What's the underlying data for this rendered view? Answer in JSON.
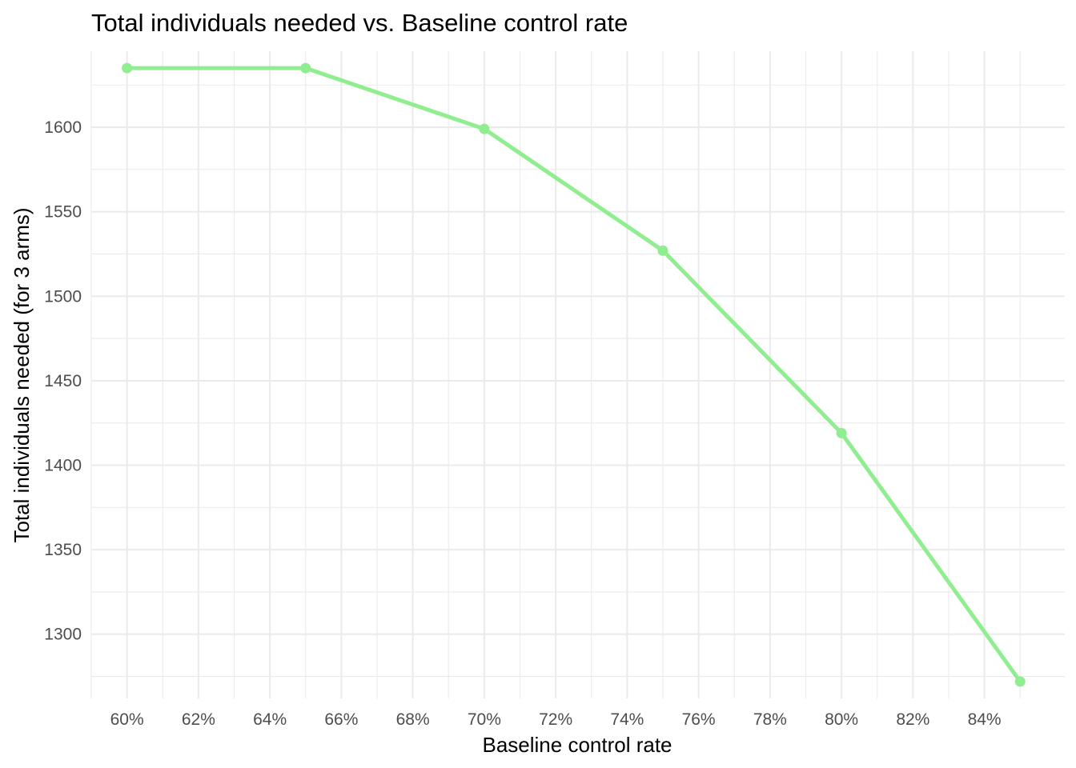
{
  "chart_data": {
    "type": "line",
    "title": "Total individuals needed vs. Baseline control rate",
    "xlabel": "Baseline control rate",
    "ylabel": "Total individuals needed (for 3 arms)",
    "x": [
      0.6,
      0.65,
      0.7,
      0.75,
      0.8,
      0.85
    ],
    "series": [
      {
        "values": [
          1635,
          1635,
          1599,
          1527,
          1419,
          1272
        ]
      }
    ],
    "xlim": [
      0.59,
      0.8625
    ],
    "ylim": [
      1262,
      1645
    ],
    "x_ticks": [
      0.6,
      0.62,
      0.64,
      0.66,
      0.68,
      0.7,
      0.72,
      0.74,
      0.76,
      0.78,
      0.8,
      0.82,
      0.84
    ],
    "x_tick_labels": [
      "60%",
      "62%",
      "64%",
      "66%",
      "68%",
      "70%",
      "72%",
      "74%",
      "76%",
      "78%",
      "80%",
      "82%",
      "84%"
    ],
    "y_ticks": [
      1300,
      1350,
      1400,
      1450,
      1500,
      1550,
      1600
    ],
    "y_tick_labels": [
      "1300",
      "1350",
      "1400",
      "1450",
      "1500",
      "1550",
      "1600"
    ],
    "grid": true,
    "legend": "none",
    "line_color": "#90ee90",
    "grid_color": "#ebebeb"
  }
}
